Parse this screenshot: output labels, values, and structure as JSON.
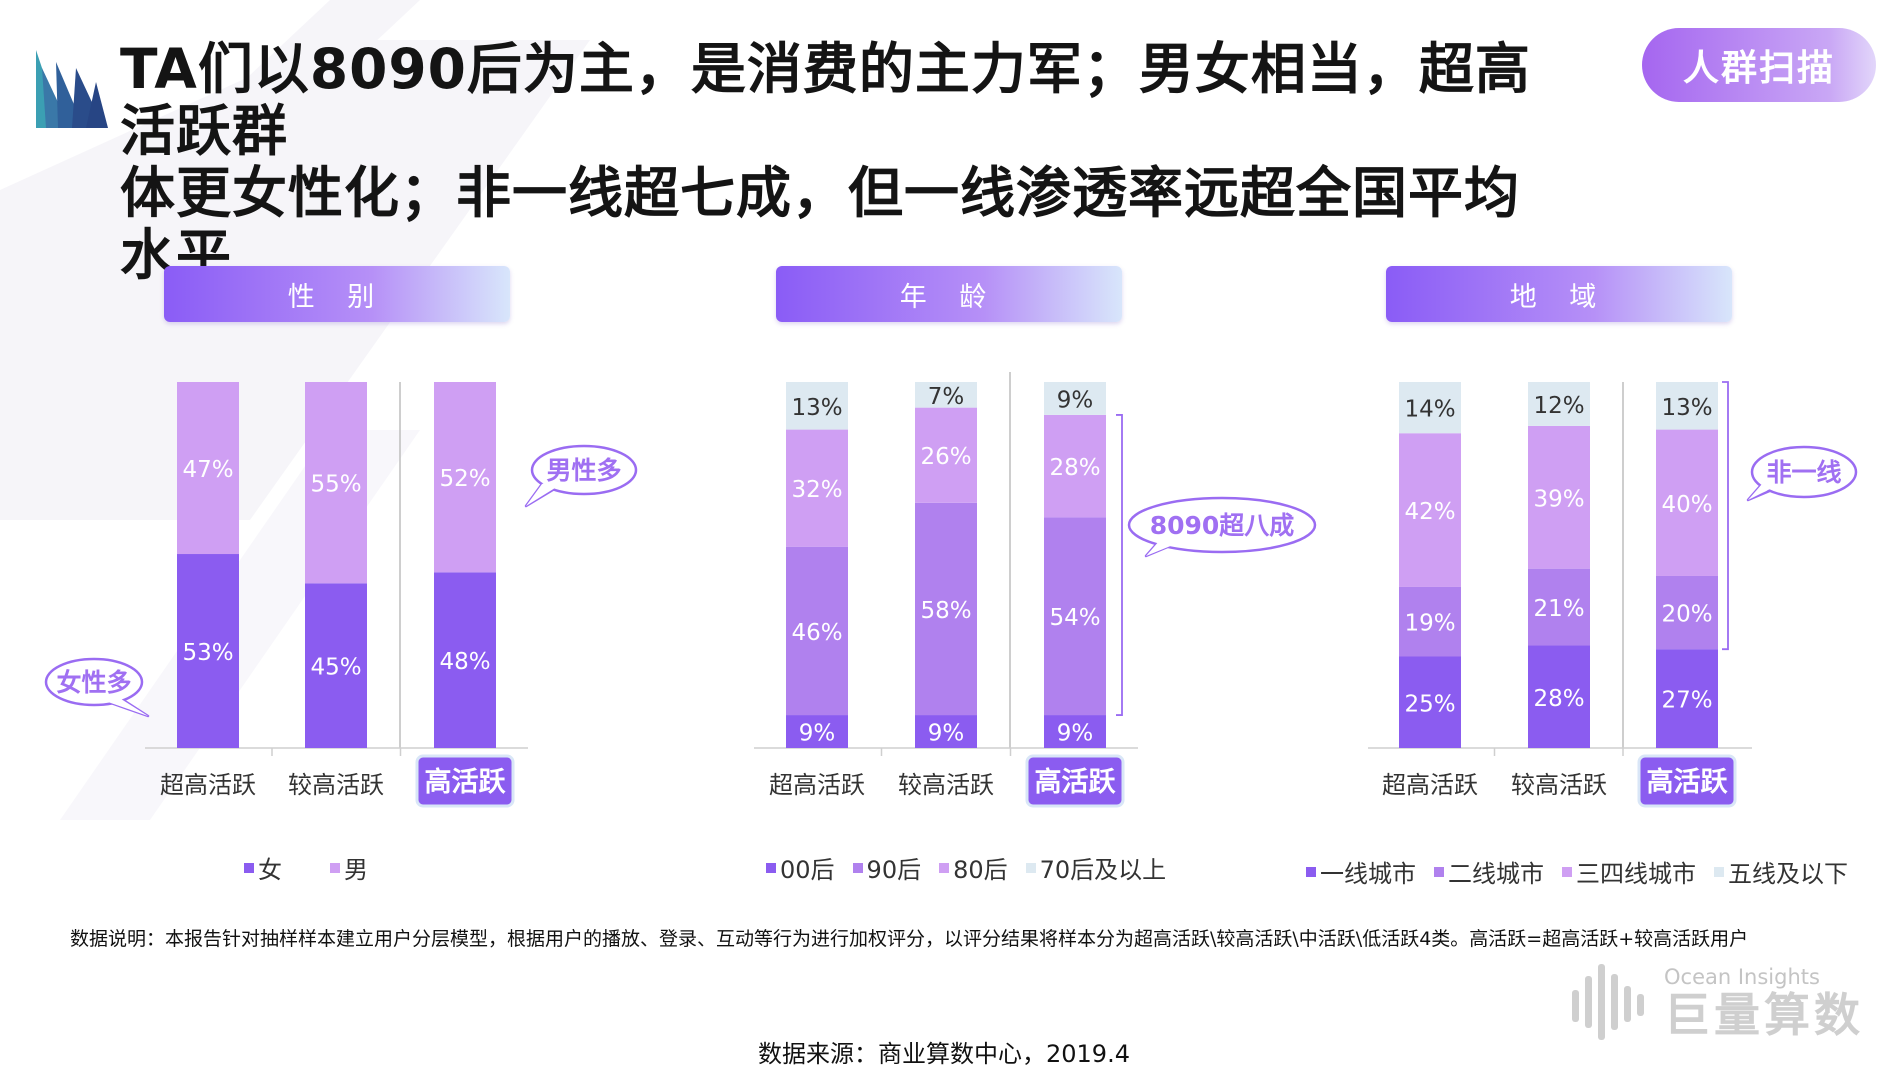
{
  "header": {
    "title_line1": "TA们以8090后为主，是消费的主力军；男女相当，超高活跃群",
    "title_line2": "体更女性化；非一线超七成，但一线渗透率远超全国平均水平",
    "badge": "人群扫描"
  },
  "footer": {
    "note": "数据说明：本报告针对抽样样本建立用户分层模型，根据用户的播放、登录、互动等行为进行加权评分，以评分结果将样本分为超高活跃\\较高活跃\\中活跃\\低活跃4类。高活跃=超高活跃+较高活跃用户",
    "source": "数据来源：商业算数中心，2019.4",
    "brand_en": "Ocean Insights",
    "brand_cn": "巨量算数"
  },
  "colors": {
    "accent": "#8a5cf6",
    "dark_purple": "#8b5cf0",
    "mid_purple": "#b081ee",
    "light_purple": "#cf9ff3",
    "pale_blue": "#dde9f1"
  },
  "icons": [
    "logo-fan-icon",
    "brand-bars-icon"
  ],
  "chart_data": [
    {
      "type": "bar",
      "stacked": true,
      "panel_title": "性 别",
      "categories": [
        "超高活跃",
        "较高活跃",
        "高活跃"
      ],
      "highlight_category": "高活跃",
      "series": [
        {
          "name": "女",
          "values": [
            53,
            45,
            48
          ],
          "color": "#8b5cf0"
        },
        {
          "name": "男",
          "values": [
            47,
            55,
            52
          ],
          "color": "#cf9ff3"
        }
      ],
      "ylim": [
        0,
        100
      ],
      "legend_position": "bottom",
      "annotations": [
        "女性多",
        "男性多"
      ]
    },
    {
      "type": "bar",
      "stacked": true,
      "panel_title": "年 龄",
      "categories": [
        "超高活跃",
        "较高活跃",
        "高活跃"
      ],
      "highlight_category": "高活跃",
      "series": [
        {
          "name": "00后",
          "values": [
            9,
            9,
            9
          ],
          "color": "#8b5cf0"
        },
        {
          "name": "90后",
          "values": [
            46,
            58,
            54
          ],
          "color": "#b081ee"
        },
        {
          "name": "80后",
          "values": [
            32,
            26,
            28
          ],
          "color": "#cf9ff3"
        },
        {
          "name": "70后及以上",
          "values": [
            13,
            7,
            9
          ],
          "color": "#dde9f1"
        }
      ],
      "ylim": [
        0,
        100
      ],
      "legend_position": "bottom",
      "annotations": [
        "8090超八成"
      ]
    },
    {
      "type": "bar",
      "stacked": true,
      "panel_title": "地 域",
      "categories": [
        "超高活跃",
        "较高活跃",
        "高活跃"
      ],
      "highlight_category": "高活跃",
      "series": [
        {
          "name": "一线城市",
          "values": [
            25,
            28,
            27
          ],
          "color": "#8b5cf0"
        },
        {
          "name": "二线城市",
          "values": [
            19,
            21,
            20
          ],
          "color": "#b081ee"
        },
        {
          "name": "三四线城市",
          "values": [
            42,
            39,
            40
          ],
          "color": "#cf9ff3"
        },
        {
          "name": "五线及以下",
          "values": [
            14,
            12,
            13
          ],
          "color": "#dde9f1"
        }
      ],
      "ylim": [
        0,
        100
      ],
      "legend_position": "bottom",
      "annotations": [
        "非一线"
      ]
    }
  ]
}
